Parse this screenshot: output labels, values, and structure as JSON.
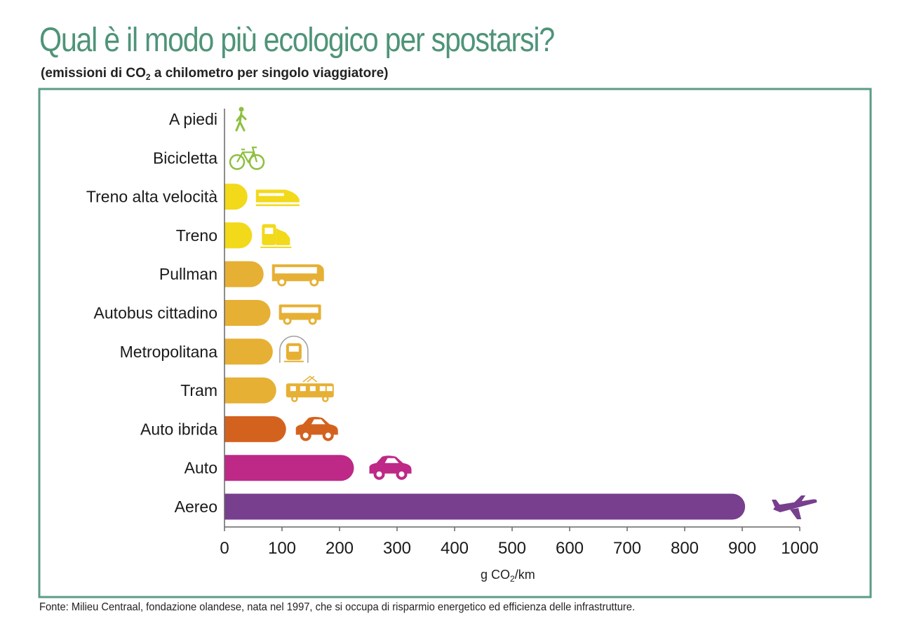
{
  "header": {
    "title": "Qual è il modo più ecologico per spostarsi?",
    "subtitle_before": "(emissioni di CO",
    "subtitle_sub": "2",
    "subtitle_after": " a chilometro per singolo viaggiatore)"
  },
  "footer": {
    "source": "Fonte: Milieu Centraal, fondazione olandese, nata nel 1997, che si occupa di risparmio energetico ed efficienza delle infrastrutture."
  },
  "chart_data": {
    "type": "bar",
    "orientation": "horizontal",
    "title": "Qual è il modo più ecologico per spostarsi?",
    "subtitle": "(emissioni di CO2 a chilometro per singolo viaggiatore)",
    "xlabel_before": "g CO",
    "xlabel_sub": "2",
    "xlabel_after": "/km",
    "xlim": [
      0,
      1000
    ],
    "xticks": [
      0,
      100,
      200,
      300,
      400,
      500,
      600,
      700,
      800,
      900,
      1000
    ],
    "grid": false,
    "categories": [
      "A piedi",
      "Bicicletta",
      "Treno alta velocità",
      "Treno",
      "Pullman",
      "Autobus cittadino",
      "Metropolitana",
      "Tram",
      "Auto ibrida",
      "Auto",
      "Aereo"
    ],
    "values": [
      0,
      0,
      40,
      48,
      68,
      80,
      84,
      90,
      107,
      225,
      905
    ],
    "bar_colors": [
      "#8cbf3f",
      "#8cbf3f",
      "#f2d91a",
      "#f2d91a",
      "#e6b035",
      "#e6b035",
      "#e6b035",
      "#e6b035",
      "#d4621f",
      "#be2887",
      "#773f8e"
    ],
    "icons": [
      "walking-person-icon",
      "bicycle-icon",
      "high-speed-train-icon",
      "train-icon",
      "coach-bus-icon",
      "city-bus-icon",
      "metro-icon",
      "tram-icon",
      "hybrid-car-icon",
      "car-icon",
      "airplane-icon"
    ]
  }
}
